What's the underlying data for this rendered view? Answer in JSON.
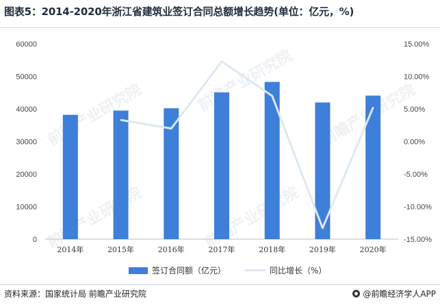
{
  "title": "图表5：2014-2020年浙江省建筑业签订合同总额增长趋势(单位：亿元，%)",
  "chart_data": {
    "type": "bar",
    "categories": [
      "2014年",
      "2015年",
      "2016年",
      "2017年",
      "2018年",
      "2019年",
      "2020年"
    ],
    "series": [
      {
        "name": "签订合同额（亿元）",
        "type": "bar",
        "axis": "left",
        "color": "#3d7fd9",
        "values": [
          38200,
          39500,
          40200,
          45100,
          48300,
          42000,
          44100
        ]
      },
      {
        "name": "同比增长（%）",
        "type": "line",
        "axis": "right",
        "color": "#dde8f3",
        "values": [
          null,
          3.3,
          2.0,
          12.3,
          7.0,
          -13.3,
          5.2
        ]
      }
    ],
    "y_left": {
      "min": 0,
      "max": 60000,
      "ticks": [
        0,
        10000,
        20000,
        30000,
        40000,
        50000,
        60000
      ],
      "tick_labels": [
        "0",
        "10000",
        "20000",
        "30000",
        "40000",
        "50000",
        "60000"
      ]
    },
    "y_right": {
      "min": -15,
      "max": 15,
      "ticks": [
        -15,
        -10,
        -5,
        0,
        5,
        10,
        15
      ],
      "tick_labels": [
        "-15.00%",
        "-10.00%",
        "-5.00%",
        "0.00%",
        "5.00%",
        "10.00%",
        "15.00%"
      ]
    },
    "grid": false,
    "legend_position": "bottom"
  },
  "legend": {
    "bar_label": "签订合同额（亿元）",
    "line_label": "同比增长（%）"
  },
  "footer": {
    "source": "资料来源：国家统计局 前瞻产业研究院",
    "brand": "@前瞻经济学人APP"
  },
  "watermark": "前瞻产业研究院"
}
